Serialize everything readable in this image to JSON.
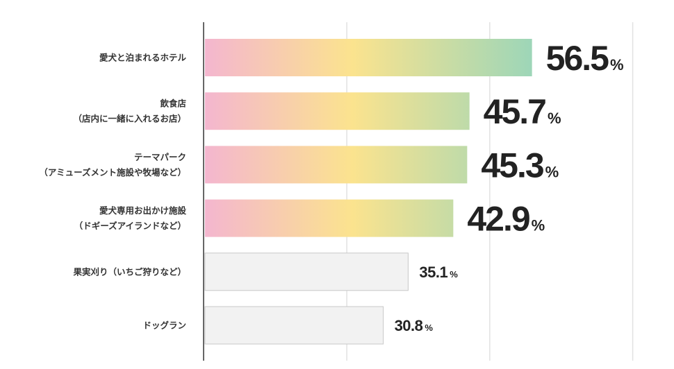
{
  "chart_data": {
    "type": "bar",
    "orientation": "horizontal",
    "title": "",
    "xlabel": "",
    "ylabel": "",
    "xlim": [
      0,
      75
    ],
    "grid": true,
    "unit": "%",
    "categories": [
      [
        "愛犬と泊まれるホテル"
      ],
      [
        "飲食店",
        "（店内に一緒に入れるお店）"
      ],
      [
        "テーマパーク",
        "（アミューズメント施設や牧場など）"
      ],
      [
        "愛犬専用お出かけ施設",
        "（ドギーズアイランドなど）"
      ],
      [
        "果実刈り（いちご狩りなど）"
      ],
      [
        "ドッグラン"
      ]
    ],
    "values": [
      56.5,
      45.7,
      45.3,
      42.9,
      35.1,
      30.8
    ],
    "value_labels": [
      "56.5",
      "45.7",
      "45.3",
      "42.9",
      "35.1",
      "30.8"
    ],
    "highlighted": [
      true,
      true,
      true,
      true,
      false,
      false
    ],
    "colors": {
      "gradient": [
        "#f4b6cf",
        "#fbe38e",
        "#9dd6b8"
      ],
      "plain_fill": "#f2f2f2",
      "plain_stroke": "#c8c8c8",
      "grid": "#e2e2e2",
      "axis": "#333333"
    }
  }
}
